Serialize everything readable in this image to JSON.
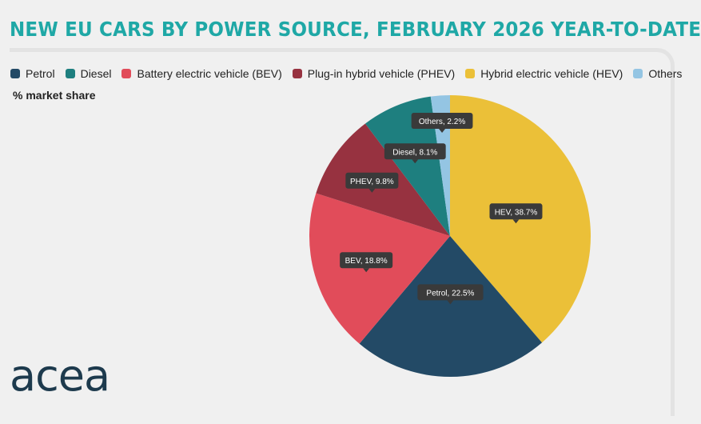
{
  "title": "NEW EU CARS BY POWER SOURCE, FEBRUARY 2026 YEAR-TO-DATE",
  "subtitle": "% market share",
  "logo_text": "acea",
  "colors": {
    "title": "#1fa8a6",
    "petrol": "#234a66",
    "diesel": "#1e7f7f",
    "bev": "#e14c5a",
    "phev": "#973240",
    "hev": "#ebc038",
    "others": "#94c5e3",
    "tooltip_bg": "#3a3a3a",
    "logo": "#1d3a4d"
  },
  "legend": [
    {
      "label": "Petrol",
      "color": "#234a66"
    },
    {
      "label": "Diesel",
      "color": "#1e7f7f"
    },
    {
      "label": "Battery electric vehicle (BEV)",
      "color": "#e14c5a"
    },
    {
      "label": "Plug-in hybrid vehicle (PHEV)",
      "color": "#973240"
    },
    {
      "label": "Hybrid electric vehicle (HEV)",
      "color": "#ebc038"
    },
    {
      "label": "Others",
      "color": "#94c5e3"
    }
  ],
  "chart_data": {
    "type": "pie",
    "title": "NEW EU CARS BY POWER SOURCE, FEBRUARY 2026 YEAR-TO-DATE",
    "unit": "% market share",
    "legend_position": "top",
    "slices": [
      {
        "name": "HEV",
        "value": 38.7,
        "label": "HEV, 38.7%",
        "color": "#ebc038"
      },
      {
        "name": "Petrol",
        "value": 22.5,
        "label": "Petrol, 22.5%",
        "color": "#234a66"
      },
      {
        "name": "BEV",
        "value": 18.8,
        "label": "BEV, 18.8%",
        "color": "#e14c5a"
      },
      {
        "name": "PHEV",
        "value": 9.8,
        "label": "PHEV, 9.8%",
        "color": "#973240"
      },
      {
        "name": "Diesel",
        "value": 8.1,
        "label": "Diesel, 8.1%",
        "color": "#1e7f7f"
      },
      {
        "name": "Others",
        "value": 2.2,
        "label": "Others, 2.2%",
        "color": "#94c5e3"
      }
    ]
  }
}
